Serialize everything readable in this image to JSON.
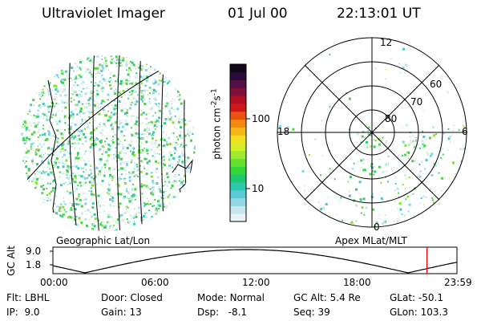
{
  "header": {
    "title": "Ultraviolet Imager",
    "date": "01 Jul 00",
    "time": "22:13:01 UT"
  },
  "left_panel": {
    "label": "Geographic Lat/Lon"
  },
  "right_panel": {
    "label": "Apex MLat/MLT",
    "mlt_labels": {
      "top": "12",
      "left": "18",
      "right": "6",
      "bottom": "0"
    },
    "lat_labels": [
      "60",
      "70",
      "80"
    ]
  },
  "colorbar": {
    "unit_main": "photon cm",
    "unit_exp1": "-2",
    "unit_s": "s",
    "unit_exp2": "-1",
    "tick_100": "100",
    "tick_10": "10",
    "colors": [
      "#e8f4f8",
      "#c9e6ee",
      "#94d8e4",
      "#5cc9d6",
      "#2ec8b0",
      "#22c870",
      "#33d63a",
      "#66e030",
      "#9ee830",
      "#d6ee28",
      "#f0e020",
      "#f5b818",
      "#f28a10",
      "#e85410",
      "#d01818",
      "#b01024",
      "#80103a",
      "#501046",
      "#2a0c3c",
      "#100818"
    ]
  },
  "altitude_plot": {
    "ylabel": "GC Alt",
    "ymax_label": "9.0",
    "ymin_label": "1.8",
    "xticks": [
      "00:00",
      "06:00",
      "12:00",
      "18:00",
      "23:59"
    ],
    "current_time_hours": 22.22,
    "marker_color": "#e00000"
  },
  "status": {
    "flt_label": "Flt:",
    "flt_value": "LBHL",
    "ip_label": "IP:",
    "ip_value": "9.0",
    "door_label": "Door:",
    "door_value": "Closed",
    "gain_label": "Gain:",
    "gain_value": "13",
    "mode_label": "Mode:",
    "mode_value": "Normal",
    "dsp_label": "Dsp:",
    "dsp_value": "-8.1",
    "gcalt_label": "GC Alt:",
    "gcalt_value": "5.4 Re",
    "seq_label": "Seq:",
    "seq_value": "39",
    "glat_label": "GLat:",
    "glat_value": "-50.1",
    "glon_label": "GLon:",
    "glon_value": "103.3"
  }
}
